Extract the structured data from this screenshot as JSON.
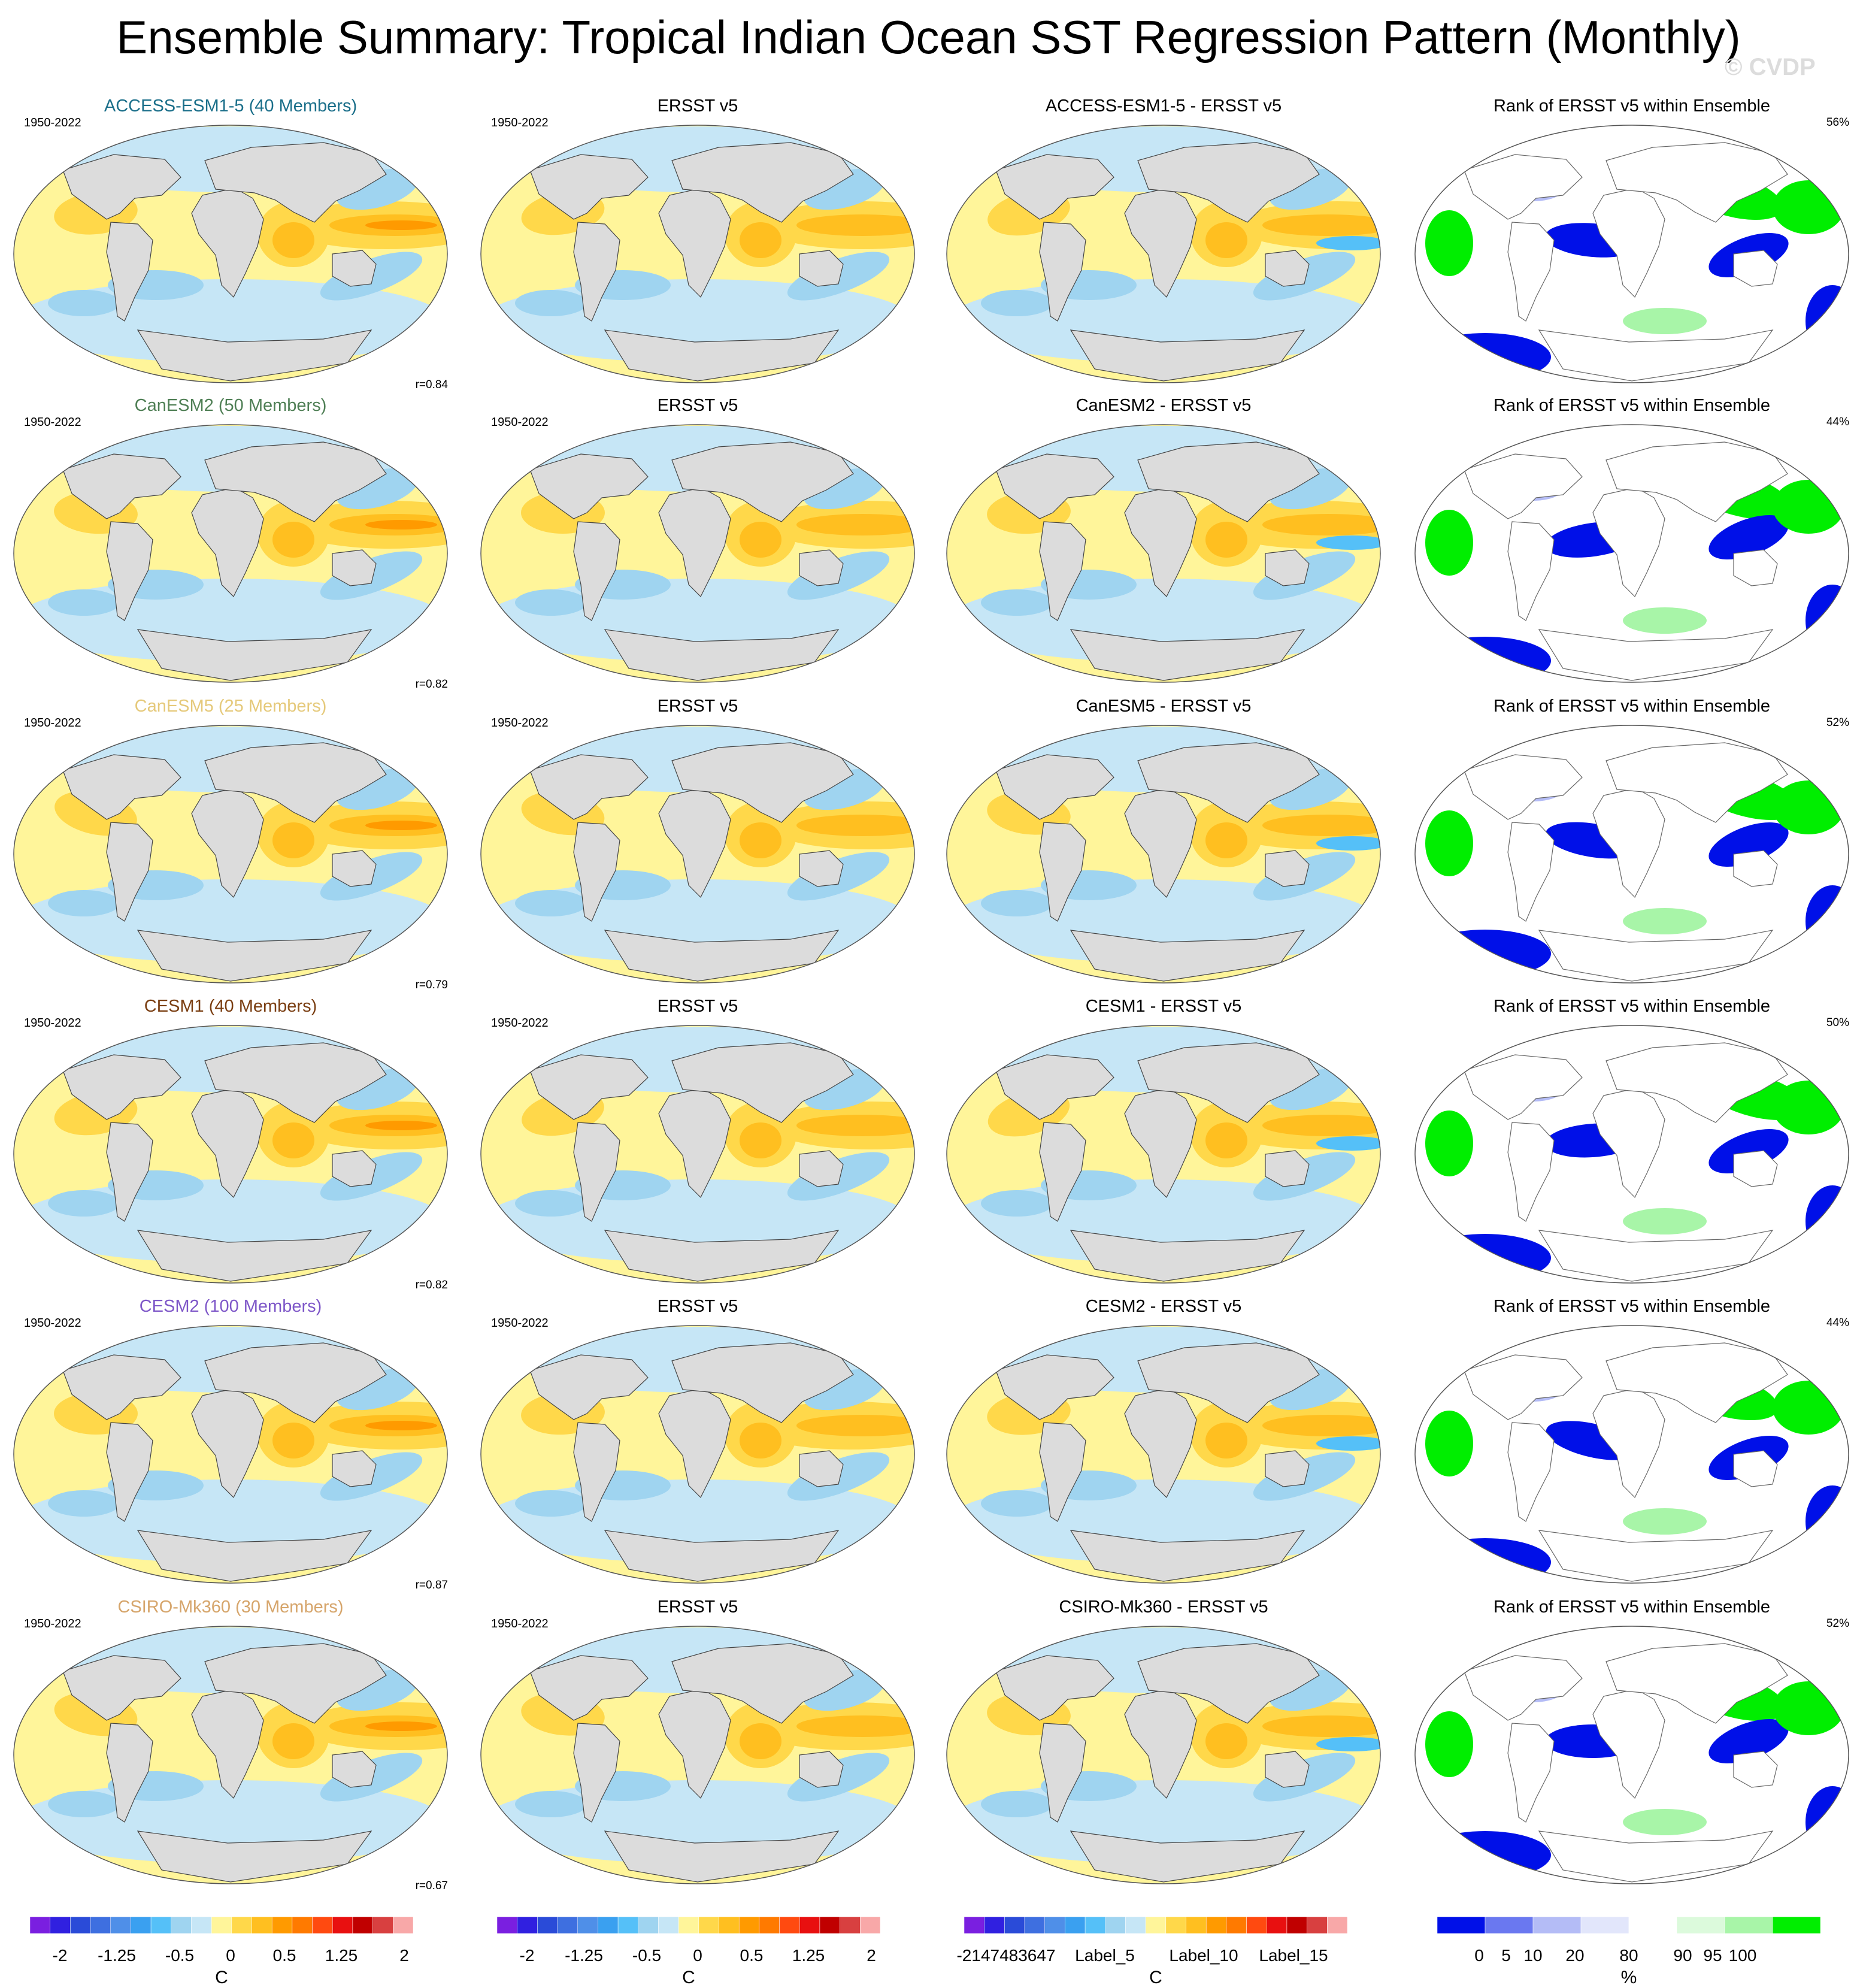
{
  "title": "Ensemble Summary: Tropical Indian Ocean SST Regression Pattern (Monthly)",
  "watermark": "© CVDP",
  "rows": [
    {
      "model": "ACCESS-ESM1-5 (40 Members)",
      "model_color": "#1b6f8a",
      "years": "1950-2022",
      "r": "r=0.84",
      "obs": "ERSST v5",
      "diff": "ACCESS-ESM1-5 - ERSST v5",
      "rank_title": "Rank of ERSST v5 within Ensemble",
      "rank_pct": "56%"
    },
    {
      "model": "CanESM2 (50 Members)",
      "model_color": "#4f7f55",
      "years": "1950-2022",
      "r": "r=0.82",
      "obs": "ERSST v5",
      "diff": "CanESM2 - ERSST v5",
      "rank_title": "Rank of ERSST v5 within Ensemble",
      "rank_pct": "44%"
    },
    {
      "model": "CanESM5 (25 Members)",
      "model_color": "#e5c97a",
      "years": "1950-2022",
      "r": "r=0.79",
      "obs": "ERSST v5",
      "diff": "CanESM5 - ERSST v5",
      "rank_title": "Rank of ERSST v5 within Ensemble",
      "rank_pct": "52%"
    },
    {
      "model": "CESM1 (40 Members)",
      "model_color": "#7a3e12",
      "years": "1950-2022",
      "r": "r=0.82",
      "obs": "ERSST v5",
      "diff": "CESM1 - ERSST v5",
      "rank_title": "Rank of ERSST v5 within Ensemble",
      "rank_pct": "50%"
    },
    {
      "model": "CESM2 (100 Members)",
      "model_color": "#7e57c8",
      "years": "1950-2022",
      "r": "r=0.87",
      "obs": "ERSST v5",
      "diff": "CESM2 - ERSST v5",
      "rank_title": "Rank of ERSST v5 within Ensemble",
      "rank_pct": "44%"
    },
    {
      "model": "CSIRO-Mk360 (30 Members)",
      "model_color": "#d6a56b",
      "years": "1950-2022",
      "r": "r=0.67",
      "obs": "ERSST v5",
      "diff": "CSIRO-Mk360 - ERSST v5",
      "rank_title": "Rank of ERSST v5 within Ensemble",
      "rank_pct": "52%"
    }
  ],
  "colorbars": {
    "sst": {
      "labels": [
        "-2",
        "-1.25",
        "-0.5",
        "0",
        "0.5",
        "1.25",
        "2"
      ],
      "unit": "C",
      "colors": [
        "#7a1fe0",
        "#3020e0",
        "#2a4bd8",
        "#3e6fe0",
        "#4f8fe8",
        "#3aa0f0",
        "#55c0f8",
        "#9fd4f0",
        "#c6e6f6",
        "#fff59a",
        "#ffd84a",
        "#ffbf20",
        "#ff9a00",
        "#ff7a00",
        "#ff4a10",
        "#e81010",
        "#c00000",
        "#d84040",
        "#f8a8a8"
      ]
    },
    "diff": {
      "labels": [
        "-2147483647",
        "Label_5",
        "Label_10",
        "Label_15"
      ],
      "unit": "C",
      "colors": [
        "#7a1fe0",
        "#3020e0",
        "#2a4bd8",
        "#3e6fe0",
        "#4f8fe8",
        "#3aa0f0",
        "#55c0f8",
        "#9fd4f0",
        "#c6e6f6",
        "#fff59a",
        "#ffd84a",
        "#ffbf20",
        "#ff9a00",
        "#ff7a00",
        "#ff4a10",
        "#e81010",
        "#c00000",
        "#d84040",
        "#f8a8a8"
      ]
    },
    "rank": {
      "labels": [
        "0",
        "5",
        "10",
        "20",
        "80",
        "90",
        "95",
        "100"
      ],
      "unit": "%",
      "colors": [
        "#0010e8",
        "#6a78f0",
        "#b4bcf6",
        "#e2e6fb",
        "#ffffff",
        "#dcfadc",
        "#a8f5a8",
        "#00ee00"
      ]
    }
  },
  "map_colors": {
    "land": "#dcdcdc",
    "warm_light": "#fff59a",
    "warm": "#ffd84a",
    "warm_strong": "#ffbf20",
    "warm_peak": "#ff9a00",
    "cool": "#c6e6f6",
    "cool_strong": "#9fd4f0",
    "cool_peak": "#55c0f8",
    "rank_low": "#0010e8",
    "rank_high": "#00ee00",
    "rank_low_light": "#b4bcf6",
    "rank_high_light": "#a8f5a8"
  }
}
